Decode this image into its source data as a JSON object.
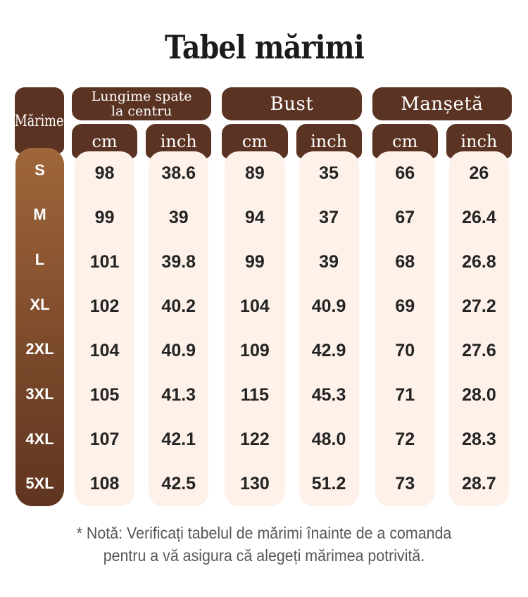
{
  "title": "Tabel mărimi",
  "size_column": {
    "header": "Mărime",
    "sizes": [
      "S",
      "M",
      "L",
      "XL",
      "2XL",
      "3XL",
      "4XL",
      "5XL"
    ]
  },
  "groups": [
    {
      "id": "lungime-spate",
      "label_lines": [
        "Lungime spate",
        "la centru"
      ],
      "units": [
        "cm",
        "inch"
      ],
      "values": [
        [
          "98",
          "99",
          "101",
          "102",
          "104",
          "105",
          "107",
          "108"
        ],
        [
          "38.6",
          "39",
          "39.8",
          "40.2",
          "40.9",
          "41.3",
          "42.1",
          "42.5"
        ]
      ]
    },
    {
      "id": "bust",
      "label_lines": [
        "Bust"
      ],
      "units": [
        "cm",
        "inch"
      ],
      "values": [
        [
          "89",
          "94",
          "99",
          "104",
          "109",
          "115",
          "122",
          "130"
        ],
        [
          "35",
          "37",
          "39",
          "40.9",
          "42.9",
          "45.3",
          "48.0",
          "51.2"
        ]
      ]
    },
    {
      "id": "manseta",
      "label_lines": [
        "Manșetă"
      ],
      "units": [
        "cm",
        "inch"
      ],
      "values": [
        [
          "66",
          "67",
          "68",
          "69",
          "70",
          "71",
          "72",
          "73"
        ],
        [
          "26",
          "26.4",
          "26.8",
          "27.2",
          "27.6",
          "28.0",
          "28.3",
          "28.7"
        ]
      ]
    }
  ],
  "note": {
    "line1": "* Notă: Verificați tabelul de mărimi înainte de a comanda",
    "line2": "pentru a vă asigura că alegeți mărimea potrivită."
  },
  "colors": {
    "header_brown": "#5a3322",
    "size_gradient_top": "#a0663a",
    "size_gradient_bottom": "#5f3420",
    "cell_background": "#fdf1ea",
    "number_text": "#242424",
    "note_text": "#575757",
    "title_text": "#1b1b1b"
  }
}
